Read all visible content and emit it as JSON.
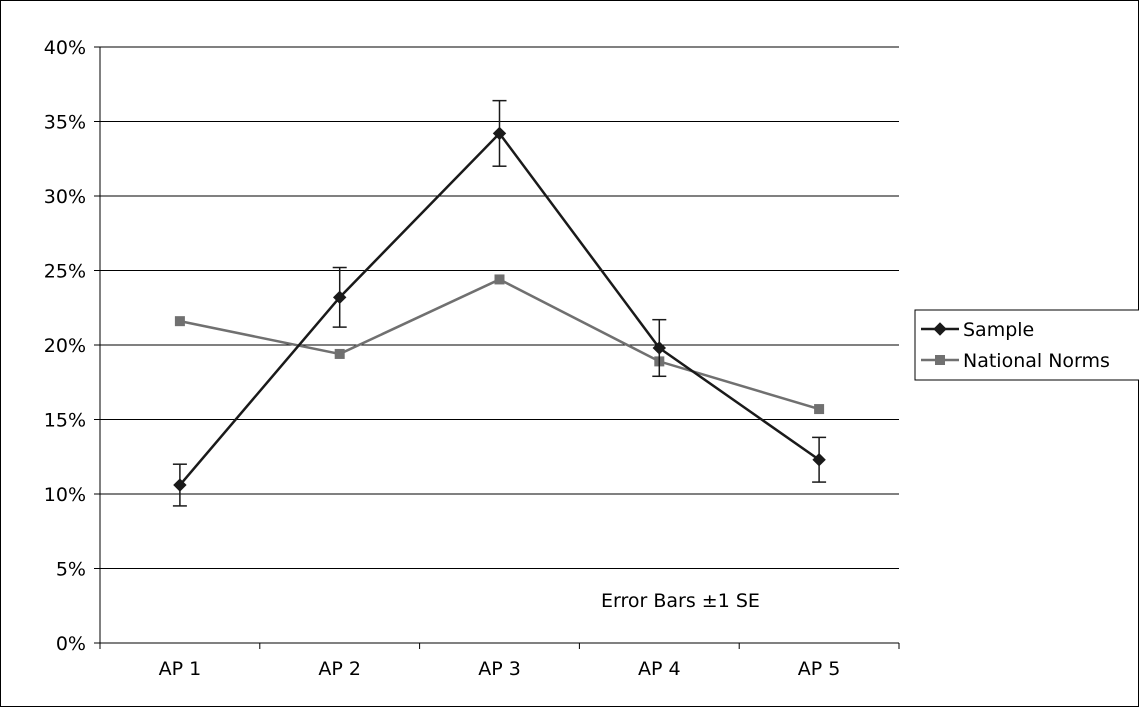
{
  "chart_data": {
    "type": "line",
    "title": "",
    "xlabel": "",
    "ylabel": "",
    "categories": [
      "AP 1",
      "AP 2",
      "AP 3",
      "AP 4",
      "AP 5"
    ],
    "ylim": [
      0,
      40
    ],
    "y_ticks": [
      0,
      5,
      10,
      15,
      20,
      25,
      30,
      35,
      40
    ],
    "y_tick_labels": [
      "0%",
      "5%",
      "10%",
      "15%",
      "20%",
      "25%",
      "30%",
      "35%",
      "40%"
    ],
    "grid": true,
    "legend_position": "right",
    "annotation": "Error Bars ±1 SE",
    "series": [
      {
        "name": "Sample",
        "values": [
          10.6,
          23.2,
          34.2,
          19.8,
          12.3
        ],
        "error": [
          1.4,
          2.0,
          2.2,
          1.9,
          1.5
        ],
        "color": "#1a1a1a",
        "marker": "diamond"
      },
      {
        "name": "National Norms",
        "values": [
          21.6,
          19.4,
          24.4,
          18.9,
          15.7
        ],
        "color": "#707070",
        "marker": "square"
      }
    ]
  }
}
